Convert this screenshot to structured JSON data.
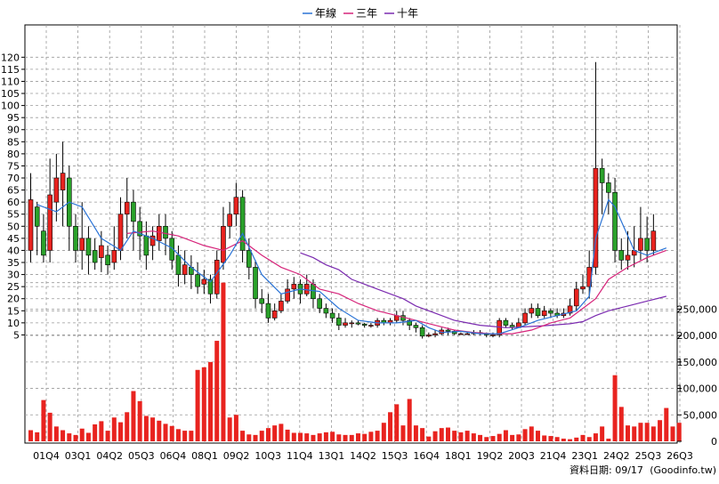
{
  "chart_data": {
    "type": "candlestick",
    "legend": [
      "年線",
      "三年",
      "十年"
    ],
    "legend_placement": "top-center",
    "colors": {
      "up": "#e8231f",
      "down": "#2aa12a",
      "year_line": "#2a73d6",
      "three_year": "#d6247a",
      "ten_year": "#7b2bb0",
      "volume": "#e8231f",
      "grid": "#9a9a9a"
    },
    "price_axis": {
      "ticks": [
        "5",
        "10",
        "15",
        "20",
        "25",
        "30",
        "35",
        "40",
        "45",
        "50",
        "55",
        "60",
        "65",
        "70",
        "75",
        "80",
        "85",
        "90",
        "95",
        "100",
        "105",
        "110",
        "115",
        "120"
      ],
      "range": [
        0,
        120
      ],
      "position": "left"
    },
    "volume_axis": {
      "ticks": [
        "0",
        "50,000",
        "100,000",
        "150,000",
        "200,000",
        "250,000"
      ],
      "range": [
        0,
        300000
      ],
      "position": "right"
    },
    "x_labels": [
      "01Q4",
      "03Q1",
      "04Q2",
      "05Q3",
      "06Q4",
      "08Q1",
      "09Q2",
      "10Q3",
      "11Q4",
      "13Q1",
      "14Q2",
      "15Q3",
      "16Q4",
      "18Q1",
      "19Q2",
      "20Q3",
      "21Q4",
      "23Q1",
      "24Q2",
      "25Q3",
      "26Q3"
    ],
    "candles": [
      [
        40,
        61,
        72,
        35
      ],
      [
        58,
        50,
        60,
        38
      ],
      [
        48,
        38,
        55,
        35
      ],
      [
        40,
        63,
        78,
        35
      ],
      [
        60,
        70,
        80,
        52
      ],
      [
        65,
        72,
        85,
        50
      ],
      [
        70,
        50,
        75,
        40
      ],
      [
        50,
        40,
        55,
        35
      ],
      [
        40,
        45,
        60,
        32
      ],
      [
        45,
        38,
        50,
        30
      ],
      [
        40,
        35,
        45,
        32
      ],
      [
        37,
        42,
        48,
        31
      ],
      [
        38,
        34,
        42,
        30
      ],
      [
        35,
        40,
        50,
        32
      ],
      [
        40,
        55,
        62,
        36
      ],
      [
        55,
        60,
        70,
        45
      ],
      [
        60,
        52,
        65,
        40
      ],
      [
        52,
        46,
        58,
        36
      ],
      [
        46,
        38,
        52,
        32
      ],
      [
        42,
        46,
        50,
        36
      ],
      [
        44,
        50,
        55,
        40
      ],
      [
        50,
        45,
        55,
        38
      ],
      [
        45,
        36,
        48,
        32
      ],
      [
        38,
        30,
        42,
        25
      ],
      [
        30,
        34,
        40,
        26
      ],
      [
        33,
        30,
        38,
        24
      ],
      [
        30,
        25,
        35,
        22
      ],
      [
        26,
        28,
        32,
        22
      ],
      [
        28,
        22,
        30,
        18
      ],
      [
        22,
        36,
        40,
        20
      ],
      [
        35,
        50,
        58,
        32
      ],
      [
        50,
        55,
        60,
        45
      ],
      [
        55,
        62,
        68,
        50
      ],
      [
        62,
        40,
        65,
        35
      ],
      [
        40,
        33,
        45,
        28
      ],
      [
        33,
        20,
        36,
        16
      ],
      [
        20,
        18,
        24,
        14
      ],
      [
        18,
        12,
        22,
        10
      ],
      [
        12,
        15,
        18,
        11
      ],
      [
        15,
        19,
        22,
        14
      ],
      [
        19,
        24,
        28,
        18
      ],
      [
        24,
        26,
        29,
        20
      ],
      [
        26,
        22,
        28,
        18
      ],
      [
        22,
        26,
        30,
        21
      ],
      [
        26,
        20,
        28,
        16
      ],
      [
        20,
        16,
        22,
        14
      ],
      [
        16,
        14,
        18,
        12
      ],
      [
        14,
        12,
        16,
        10
      ],
      [
        12,
        9,
        14,
        7
      ],
      [
        9,
        10,
        12,
        8
      ],
      [
        10,
        10,
        11,
        8
      ],
      [
        10,
        9.5,
        11,
        9
      ],
      [
        9.5,
        9,
        10,
        8
      ],
      [
        9,
        9,
        10,
        8
      ],
      [
        9,
        11,
        12,
        8
      ],
      [
        11,
        10,
        12,
        9
      ],
      [
        10,
        11,
        12,
        9
      ],
      [
        11,
        13,
        15,
        10
      ],
      [
        13,
        11,
        15,
        9
      ],
      [
        11,
        9,
        12,
        7
      ],
      [
        9,
        8,
        10,
        6
      ],
      [
        8,
        4.5,
        9,
        3.5
      ],
      [
        4.5,
        5,
        6,
        4
      ],
      [
        5,
        5.5,
        7,
        4
      ],
      [
        5.5,
        7,
        8,
        5
      ],
      [
        7,
        6.5,
        8,
        5
      ],
      [
        6.5,
        5.5,
        7,
        5
      ],
      [
        5.5,
        5.5,
        6,
        5
      ],
      [
        5.5,
        5.5,
        6,
        5
      ],
      [
        5.5,
        6,
        7,
        5
      ],
      [
        6,
        5.5,
        7,
        5
      ],
      [
        5.5,
        5,
        6,
        4
      ],
      [
        5,
        5,
        6,
        4
      ],
      [
        5,
        11,
        12,
        4
      ],
      [
        11,
        9,
        12,
        8
      ],
      [
        9,
        8,
        10,
        7
      ],
      [
        8,
        10,
        12,
        8
      ],
      [
        10,
        14,
        16,
        9
      ],
      [
        14,
        16,
        18,
        12
      ],
      [
        16,
        13,
        18,
        12
      ],
      [
        13,
        15,
        17,
        12
      ],
      [
        15,
        14,
        16,
        12
      ],
      [
        14,
        13,
        16,
        12
      ],
      [
        13,
        14,
        16,
        12
      ],
      [
        14,
        17,
        20,
        13
      ],
      [
        17,
        24,
        27,
        15
      ],
      [
        24,
        25,
        30,
        22
      ],
      [
        25,
        33,
        40,
        20
      ],
      [
        33,
        74,
        118,
        30
      ],
      [
        74,
        68,
        78,
        55
      ],
      [
        68,
        64,
        72,
        55
      ],
      [
        64,
        40,
        70,
        35
      ],
      [
        40,
        36,
        45,
        32
      ],
      [
        36,
        38,
        48,
        32
      ],
      [
        38,
        40,
        50,
        33
      ],
      [
        40,
        45,
        58,
        36
      ],
      [
        45,
        40,
        54,
        35
      ],
      [
        40,
        48,
        55,
        38
      ]
    ],
    "volumes": [
      21000,
      17000,
      78000,
      54000,
      28000,
      21000,
      15000,
      12000,
      24000,
      16000,
      32000,
      38000,
      20000,
      45000,
      36000,
      55000,
      95000,
      76000,
      48000,
      45000,
      39000,
      33000,
      29000,
      23000,
      20000,
      20000,
      135000,
      140000,
      150000,
      190000,
      300000,
      45000,
      50000,
      20000,
      13000,
      12000,
      20000,
      25000,
      30000,
      33000,
      22000,
      16000,
      16000,
      15000,
      12000,
      15000,
      17000,
      18000,
      13000,
      12000,
      12000,
      15000,
      14000,
      18000,
      20000,
      35000,
      55000,
      70000,
      30000,
      80000,
      30000,
      25000,
      9000,
      19000,
      25000,
      26000,
      20000,
      17000,
      20000,
      15000,
      12000,
      8000,
      10000,
      14000,
      21000,
      12000,
      13000,
      23000,
      28000,
      20000,
      11000,
      10000,
      8000,
      5000,
      4000,
      7000,
      12000,
      8000,
      15000,
      28000,
      5000,
      125000,
      65000,
      30000,
      28000,
      35000,
      35000,
      28000,
      40000,
      63000,
      28000,
      35000
    ],
    "year_line": [
      [
        1,
        59
      ],
      [
        4,
        56
      ],
      [
        6,
        60
      ],
      [
        8,
        58
      ],
      [
        11,
        45
      ],
      [
        14,
        40
      ],
      [
        16,
        48
      ],
      [
        19,
        45
      ],
      [
        22,
        41
      ],
      [
        25,
        33
      ],
      [
        28,
        27
      ],
      [
        31,
        38
      ],
      [
        33,
        47
      ],
      [
        36,
        30
      ],
      [
        39,
        22
      ],
      [
        42,
        24
      ],
      [
        45,
        23
      ],
      [
        48,
        16
      ],
      [
        51,
        11
      ],
      [
        54,
        10
      ],
      [
        57,
        10
      ],
      [
        60,
        11
      ],
      [
        62,
        8
      ],
      [
        64,
        6
      ],
      [
        67,
        6.5
      ],
      [
        70,
        5.5
      ],
      [
        73,
        5.5
      ],
      [
        76,
        8
      ],
      [
        79,
        11
      ],
      [
        82,
        13
      ],
      [
        85,
        15
      ],
      [
        87,
        21
      ],
      [
        88,
        45
      ],
      [
        90,
        61
      ],
      [
        91,
        58
      ],
      [
        94,
        40
      ],
      [
        96,
        38
      ],
      [
        98,
        40
      ],
      [
        99,
        41
      ]
    ],
    "three_year": [
      [
        15,
        47
      ],
      [
        19,
        48
      ],
      [
        23,
        46
      ],
      [
        27,
        42
      ],
      [
        30,
        40
      ],
      [
        33,
        44
      ],
      [
        36,
        38
      ],
      [
        39,
        33
      ],
      [
        42,
        30
      ],
      [
        45,
        24
      ],
      [
        48,
        22
      ],
      [
        51,
        18
      ],
      [
        54,
        15
      ],
      [
        57,
        13
      ],
      [
        60,
        11
      ],
      [
        63,
        9
      ],
      [
        66,
        7
      ],
      [
        69,
        6
      ],
      [
        72,
        5.5
      ],
      [
        75,
        5.5
      ],
      [
        78,
        7
      ],
      [
        81,
        10
      ],
      [
        84,
        12
      ],
      [
        86,
        16
      ],
      [
        88,
        20
      ],
      [
        90,
        28
      ],
      [
        93,
        33
      ],
      [
        96,
        37
      ],
      [
        99,
        40
      ]
    ],
    "ten_year": [
      [
        42,
        39
      ],
      [
        44,
        37
      ],
      [
        46,
        34
      ],
      [
        48,
        32
      ],
      [
        50,
        28
      ],
      [
        52,
        26
      ],
      [
        54,
        24
      ],
      [
        56,
        22
      ],
      [
        58,
        20
      ],
      [
        60,
        17
      ],
      [
        62,
        15
      ],
      [
        64,
        13
      ],
      [
        66,
        11
      ],
      [
        68,
        10
      ],
      [
        70,
        9
      ],
      [
        72,
        8.5
      ],
      [
        74,
        8
      ],
      [
        76,
        8.2
      ],
      [
        78,
        8.5
      ],
      [
        80,
        8.8
      ],
      [
        82,
        9.2
      ],
      [
        84,
        9.6
      ],
      [
        86,
        10.5
      ],
      [
        88,
        13
      ],
      [
        90,
        15
      ],
      [
        93,
        17
      ],
      [
        96,
        19
      ],
      [
        99,
        21
      ]
    ]
  },
  "footer": {
    "date_label": "資料日期: 09/17",
    "source": "(Goodinfo.tw)"
  }
}
